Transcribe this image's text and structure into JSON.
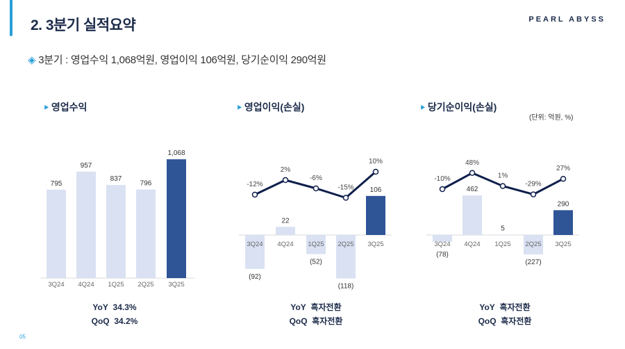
{
  "header": {
    "title": "2. 3분기 실적요약",
    "logo": "PEARL ABYSS"
  },
  "summary": {
    "icon": "diamond-arrow-icon",
    "text": "3분기 : 영업수익 1,068억원, 영업이익 106억원, 당기순이익 290억원"
  },
  "unit_note": "(단위: 억원, %)",
  "page_number": "05",
  "colors": {
    "past_bar": "#d9e1f2",
    "current_bar": "#2f5597",
    "line": "#0f1f4b",
    "accent": "#2a9fd8"
  },
  "chart_data": [
    {
      "type": "bar",
      "title": "영업수익",
      "categories": [
        "3Q24",
        "4Q24",
        "1Q25",
        "2Q25",
        "3Q25"
      ],
      "values": [
        795,
        957,
        837,
        796,
        1068
      ],
      "value_labels": [
        "795",
        "957",
        "837",
        "796",
        "1,068"
      ],
      "footer": [
        {
          "label": "YoY",
          "value": "34.3%"
        },
        {
          "label": "QoQ",
          "value": "34.2%"
        }
      ]
    },
    {
      "type": "bar+line",
      "title": "영업이익(손실)",
      "categories": [
        "3Q24",
        "4Q24",
        "1Q25",
        "2Q25",
        "3Q25"
      ],
      "values": [
        -92,
        22,
        -52,
        -118,
        106
      ],
      "value_labels": [
        "(92)",
        "22",
        "(52)",
        "(118)",
        "106"
      ],
      "margin_pct": [
        -12,
        2,
        -6,
        -15,
        10
      ],
      "margin_labels": [
        "-12%",
        "2%",
        "-6%",
        "-15%",
        "10%"
      ],
      "footer": [
        {
          "label": "YoY",
          "value": "흑자전환"
        },
        {
          "label": "QoQ",
          "value": "흑자전환"
        }
      ]
    },
    {
      "type": "bar+line",
      "title": "당기순이익(손실)",
      "categories": [
        "3Q24",
        "4Q24",
        "1Q25",
        "2Q25",
        "3Q25"
      ],
      "values": [
        -78,
        462,
        5,
        -227,
        290
      ],
      "value_labels": [
        "(78)",
        "462",
        "5",
        "(227)",
        "290"
      ],
      "margin_pct": [
        -10,
        48,
        1,
        -29,
        27
      ],
      "margin_labels": [
        "-10%",
        "48%",
        "1%",
        "-29%",
        "27%"
      ],
      "footer": [
        {
          "label": "YoY",
          "value": "흑자전환"
        },
        {
          "label": "QoQ",
          "value": "흑자전환"
        }
      ]
    }
  ]
}
